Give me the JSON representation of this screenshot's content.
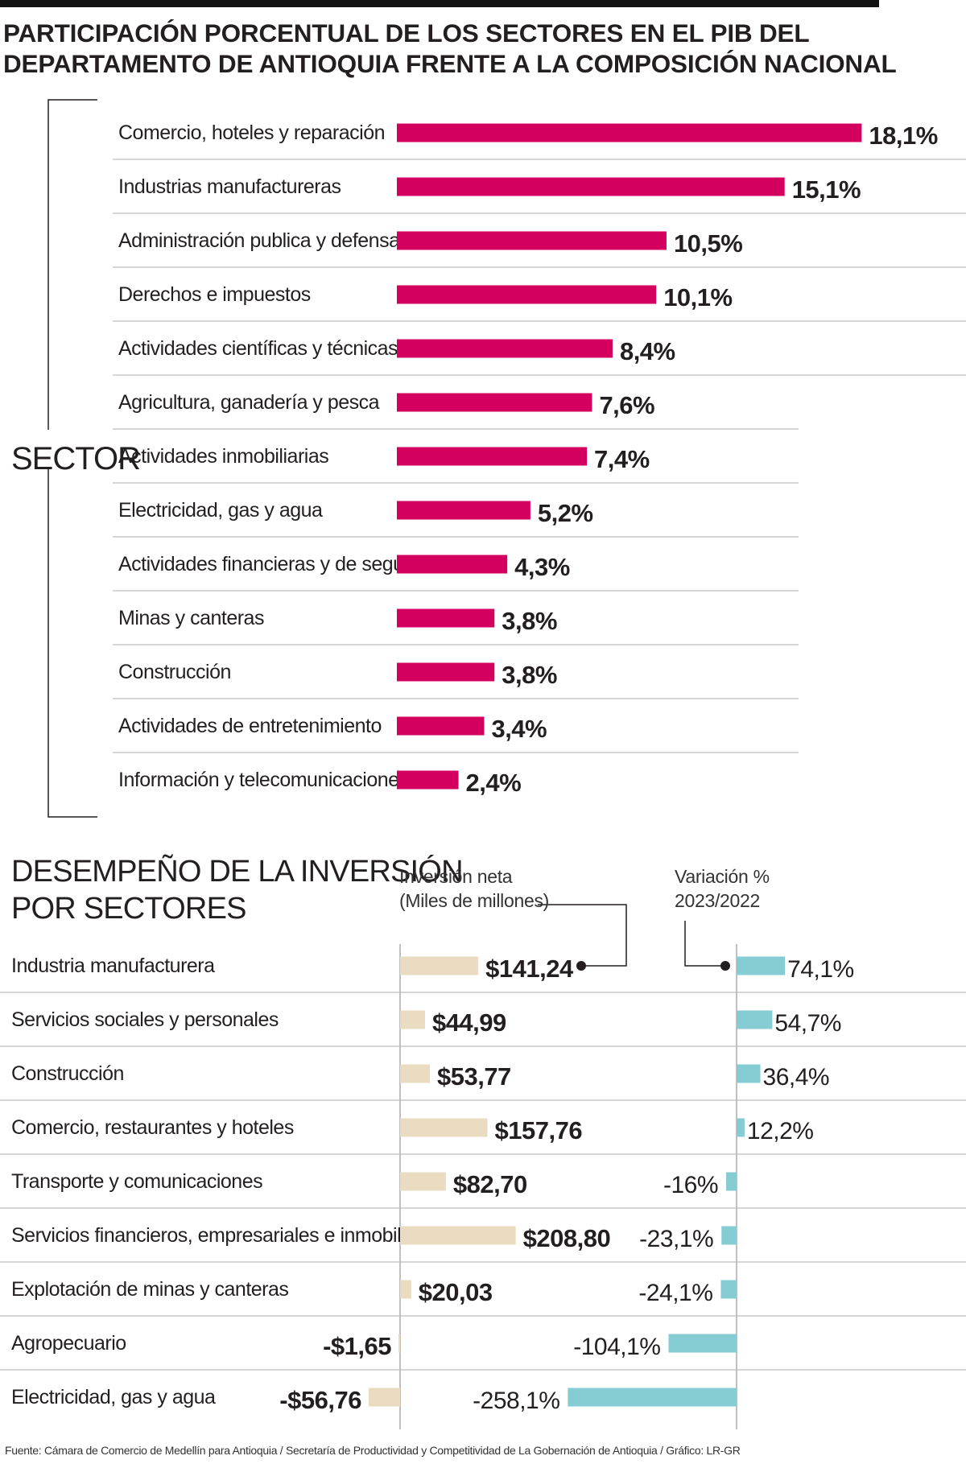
{
  "title": {
    "line1": "PARTICIPACIÓN PORCENTUAL DE LOS SECTORES EN EL PIB DEL",
    "line2": "DEPARTAMENTO DE ANTIOQUIA FRENTE A LA COMPOSICIÓN NACIONAL"
  },
  "sector_axis_label": "SECTOR",
  "investment_title": {
    "line1": "DESEMPEÑO DE LA INVERSIÓN",
    "line2": "POR SECTORES"
  },
  "investment_header": {
    "net_line1": "Inversión neta",
    "net_line2": "(Miles de millones)",
    "var_line1": "Variación %",
    "var_line2": "2023/2022"
  },
  "source": "Fuente: Cámara de Comercio de Medellín para Antioquia / Secretaría de Productividad y Competitividad de La Gobernación de Antioquia / Gráfico: LR-GR",
  "colors": {
    "pib_bar": "#d4005f",
    "investment_bar": "#eadcc0",
    "variation_bar": "#86ccd3",
    "gridline": "#bdbdbd",
    "text": "#231f20"
  },
  "chart_data": [
    {
      "type": "bar",
      "orientation": "horizontal",
      "title": "PARTICIPACIÓN PORCENTUAL DE LOS SECTORES EN EL PIB DEL DEPARTAMENTO DE ANTIOQUIA FRENTE A LA COMPOSICIÓN NACIONAL",
      "ylabel": "SECTOR",
      "categories": [
        "Comercio, hoteles y reparación",
        "Industrias manufactureras",
        "Administración publica y defensa",
        "Derechos e impuestos",
        "Actividades científicas y técnicas",
        "Agricultura, ganadería y pesca",
        "Actividades inmobiliarias",
        "Electricidad, gas y agua",
        "Actividades financieras y de seguros",
        "Minas y canteras",
        "Construcción",
        "Actividades de entretenimiento",
        "Información  y telecomunicaciones"
      ],
      "values": [
        18.1,
        15.1,
        10.5,
        10.1,
        8.4,
        7.6,
        7.4,
        5.2,
        4.3,
        3.8,
        3.8,
        3.4,
        2.4
      ],
      "labels": [
        "18,1%",
        "15,1%",
        "10,5%",
        "10,1%",
        "8,4%",
        "7,6%",
        "7,4%",
        "5,2%",
        "4,3%",
        "3,8%",
        "3,8%",
        "3,4%",
        "2,4%"
      ],
      "unit": "%"
    },
    {
      "type": "bar",
      "orientation": "horizontal",
      "title": "DESEMPEÑO DE LA INVERSIÓN POR SECTORES",
      "categories": [
        "Industria manufacturera",
        "Servicios sociales y personales",
        "Construcción",
        "Comercio, restaurantes y hoteles",
        "Transporte y comunicaciones",
        "Servicios financieros, empresariales e inmobiliarios",
        "Explotación de minas y canteras",
        "Agropecuario",
        "Electricidad, gas y agua"
      ],
      "series": [
        {
          "name": "Inversión neta (Miles de millones)",
          "values": [
            141.24,
            44.99,
            53.77,
            157.76,
            82.7,
            208.8,
            20.03,
            -1.65,
            -56.76
          ],
          "labels": [
            "$141,24",
            "$44,99",
            "$53,77",
            "$157,76",
            "$82,70",
            "$208,80",
            "$20,03",
            "-$1,65",
            "-$56,76"
          ]
        },
        {
          "name": "Variación % 2023/2022",
          "values": [
            74.1,
            54.7,
            36.4,
            12.2,
            -16,
            -23.1,
            -24.1,
            -104.1,
            -258.1
          ],
          "labels": [
            "74,1%",
            "54,7%",
            "36,4%",
            "12,2%",
            "-16%",
            "-23,1%",
            "-24,1%",
            "-104,1%",
            "-258,1%"
          ]
        }
      ]
    }
  ]
}
